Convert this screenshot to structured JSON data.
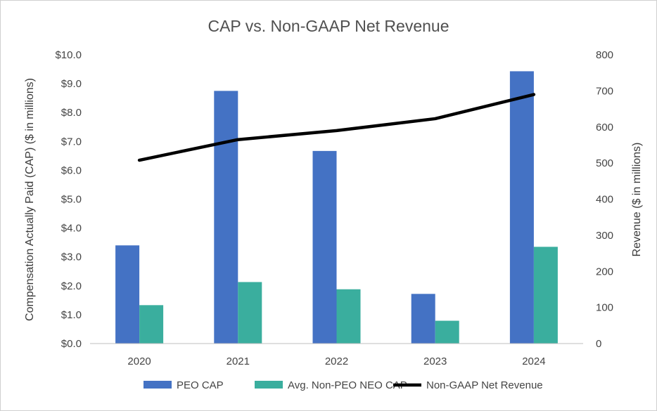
{
  "chart_data": {
    "type": "bar",
    "title": "CAP vs. Non-GAAP Net Revenue",
    "categories": [
      "2020",
      "2021",
      "2022",
      "2023",
      "2024"
    ],
    "ylabel": "Compensation Actually Paid (CAP) ($ in millions)",
    "y2label": "Revenue ($ in millions)",
    "ylim": [
      0,
      10
    ],
    "y2lim": [
      0,
      800
    ],
    "ytick_labels": [
      "$0.0",
      "$1.0",
      "$2.0",
      "$3.0",
      "$4.0",
      "$5.0",
      "$6.0",
      "$7.0",
      "$8.0",
      "$9.0",
      "$10.0"
    ],
    "y2tick_labels": [
      "0",
      "100",
      "200",
      "300",
      "400",
      "500",
      "600",
      "700",
      "800"
    ],
    "grid": false,
    "legend_position": "bottom",
    "series": [
      {
        "name": "PEO CAP",
        "type": "bar",
        "axis": "left",
        "color": "#4472C4",
        "values": [
          3.4,
          8.75,
          6.67,
          1.72,
          9.43
        ]
      },
      {
        "name": "Avg. Non-PEO NEO CAP",
        "type": "bar",
        "axis": "left",
        "color": "#3AAE9E",
        "values": [
          1.33,
          2.13,
          1.88,
          0.79,
          3.35
        ]
      },
      {
        "name": "Non-GAAP Net Revenue",
        "type": "line",
        "axis": "right",
        "color": "#000000",
        "values": [
          508,
          565,
          590,
          623,
          690
        ]
      }
    ]
  }
}
